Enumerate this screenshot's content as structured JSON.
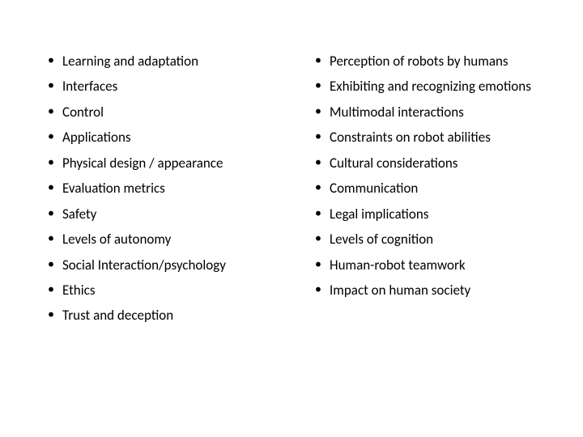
{
  "left_column": {
    "items": [
      "Learning and adaptation",
      "Interfaces",
      "Control",
      "Applications",
      "Physical design / appearance",
      "Evaluation metrics",
      "Safety",
      "Levels of autonomy",
      "Social Interaction/psychology",
      "Ethics",
      "Trust and deception"
    ]
  },
  "right_column": {
    "items": [
      "Perception of robots by humans",
      "Exhibiting and recognizing emotions",
      "Multimodal interactions",
      "Constraints on robot abilities",
      "Cultural considerations",
      "Communication",
      "Legal implications",
      "Levels of cognition",
      "Human-robot teamwork",
      "Impact on human society"
    ]
  },
  "styling": {
    "background_color": "#ffffff",
    "text_color": "#000000",
    "bullet_color": "#000000",
    "font_family": "Calibri, Arial, sans-serif",
    "font_size": 17,
    "line_height": 1.85
  }
}
